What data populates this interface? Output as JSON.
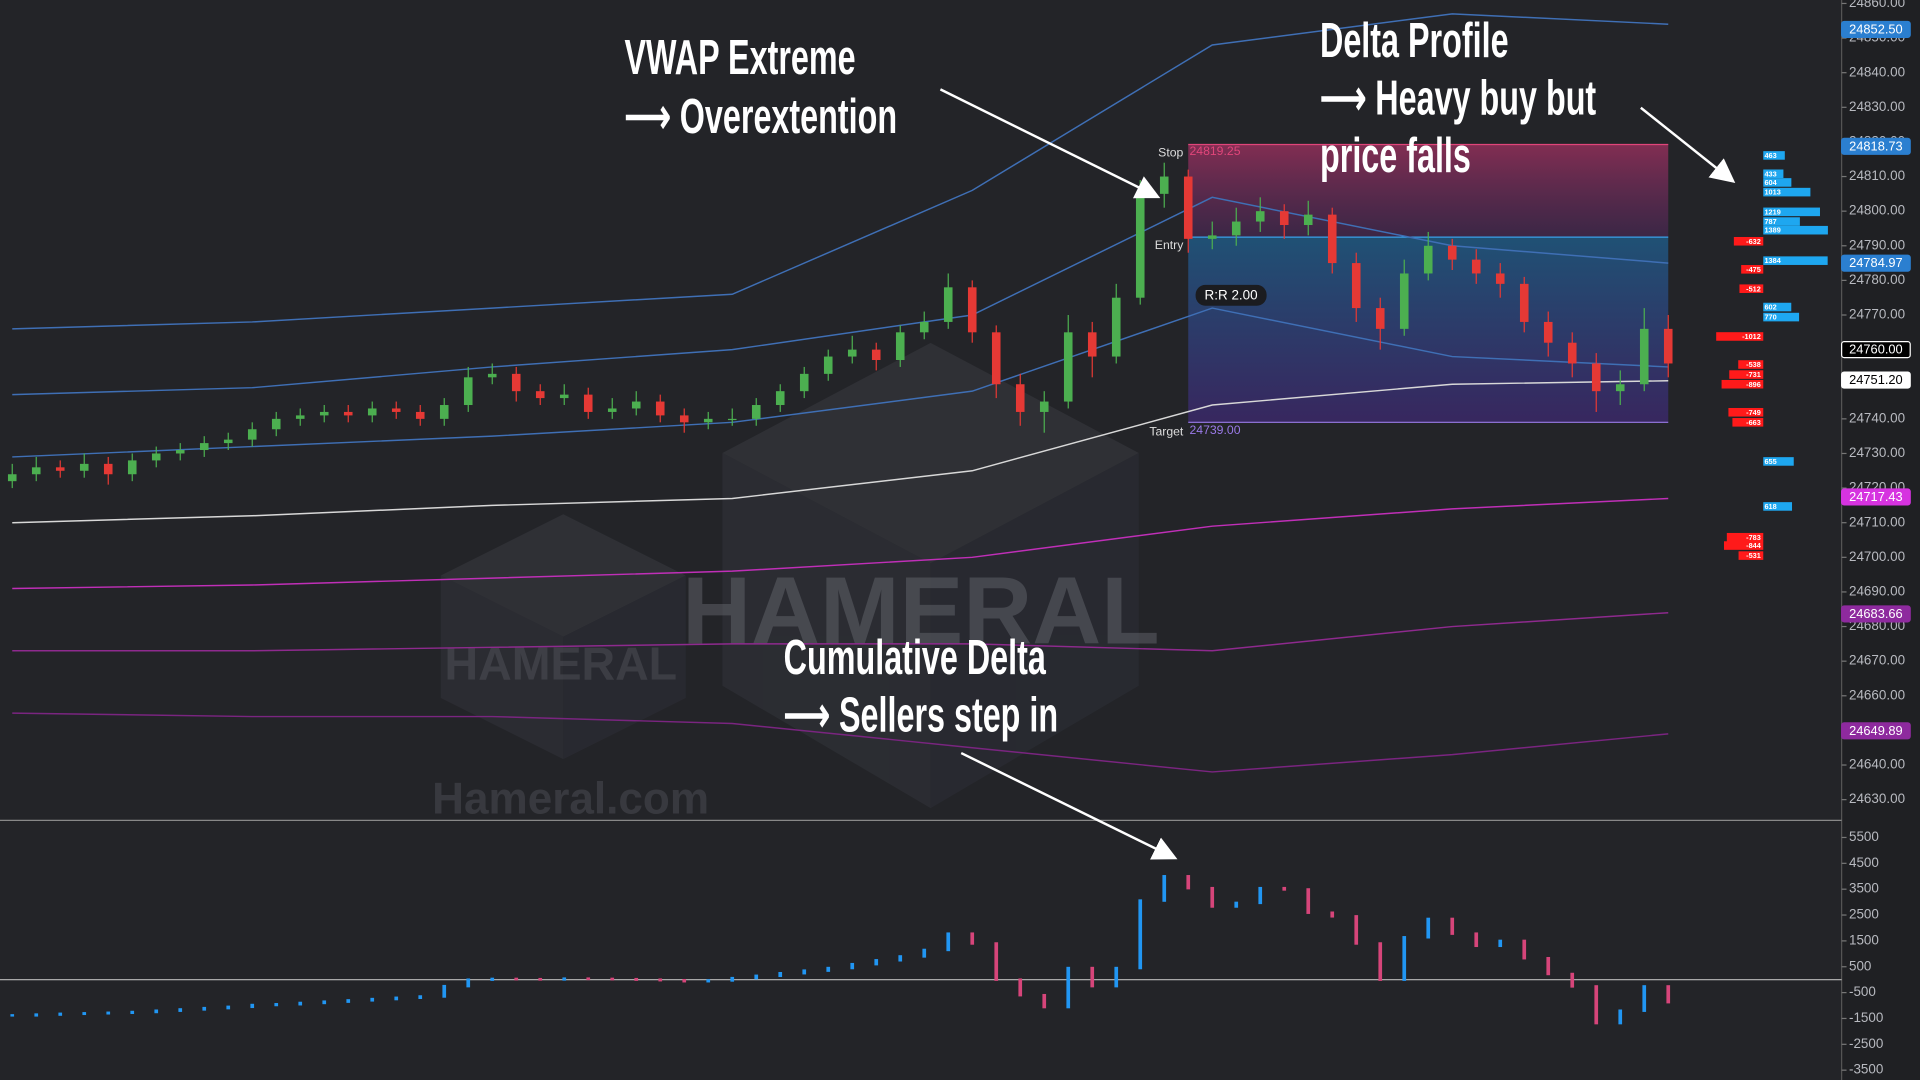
{
  "chart_data": [
    {
      "type": "candlestick",
      "up_color": "#4caf50",
      "down_color": "#e53935",
      "ohlc": [
        [
          24722,
          24727,
          24720,
          24724
        ],
        [
          24724,
          24729,
          24722,
          24726
        ],
        [
          24726,
          24728,
          24723,
          24725
        ],
        [
          24725,
          24730,
          24723,
          24727
        ],
        [
          24727,
          24729,
          24721,
          24724
        ],
        [
          24724,
          24730,
          24722,
          24728
        ],
        [
          24728,
          24732,
          24726,
          24730
        ],
        [
          24730,
          24733,
          24728,
          24731
        ],
        [
          24731,
          24735,
          24729,
          24733
        ],
        [
          24733,
          24736,
          24731,
          24734
        ],
        [
          24734,
          24739,
          24732,
          24737
        ],
        [
          24737,
          24742,
          24735,
          24740
        ],
        [
          24740,
          24743,
          24738,
          24741
        ],
        [
          24741,
          24744,
          24739,
          24742
        ],
        [
          24742,
          24744,
          24739,
          24741
        ],
        [
          24741,
          24745,
          24739,
          24743
        ],
        [
          24743,
          24745,
          24740,
          24742
        ],
        [
          24742,
          24744,
          24738,
          24740
        ],
        [
          24740,
          24746,
          24738,
          24744
        ],
        [
          24744,
          24755,
          24742,
          24752
        ],
        [
          24752,
          24756,
          24750,
          24753
        ],
        [
          24753,
          24755,
          24745,
          24748
        ],
        [
          24748,
          24750,
          24744,
          24746
        ],
        [
          24746,
          24750,
          24744,
          24747
        ],
        [
          24747,
          24749,
          24740,
          24742
        ],
        [
          24742,
          24746,
          24740,
          24743
        ],
        [
          24743,
          24748,
          24741,
          24745
        ],
        [
          24745,
          24747,
          24739,
          24741
        ],
        [
          24741,
          24743,
          24736,
          24739
        ],
        [
          24739,
          24742,
          24737,
          24740
        ],
        [
          24740,
          24743,
          24738,
          24740
        ],
        [
          24740,
          24746,
          24738,
          24744
        ],
        [
          24744,
          24750,
          24742,
          24748
        ],
        [
          24748,
          24755,
          24746,
          24753
        ],
        [
          24753,
          24760,
          24751,
          24758
        ],
        [
          24758,
          24764,
          24756,
          24760
        ],
        [
          24760,
          24762,
          24754,
          24757
        ],
        [
          24757,
          24767,
          24755,
          24765
        ],
        [
          24765,
          24771,
          24763,
          24768
        ],
        [
          24768,
          24782,
          24766,
          24778
        ],
        [
          24778,
          24780,
          24762,
          24765
        ],
        [
          24765,
          24767,
          24746,
          24750
        ],
        [
          24750,
          24753,
          24738,
          24742
        ],
        [
          24742,
          24748,
          24736,
          24745
        ],
        [
          24745,
          24770,
          24743,
          24765
        ],
        [
          24765,
          24768,
          24752,
          24758
        ],
        [
          24758,
          24779,
          24756,
          24775
        ],
        [
          24775,
          24809,
          24773,
          24805
        ],
        [
          24805,
          24814,
          24801,
          24810
        ],
        [
          24810,
          24812,
          24788,
          24792
        ],
        [
          24792,
          24797,
          24789,
          24793
        ],
        [
          24793,
          24801,
          24790,
          24797
        ],
        [
          24797,
          24804,
          24794,
          24800
        ],
        [
          24800,
          24802,
          24792,
          24796
        ],
        [
          24796,
          24803,
          24793,
          24799
        ],
        [
          24799,
          24801,
          24782,
          24785
        ],
        [
          24785,
          24788,
          24768,
          24772
        ],
        [
          24772,
          24775,
          24760,
          24766
        ],
        [
          24766,
          24786,
          24764,
          24782
        ],
        [
          24782,
          24794,
          24780,
          24790
        ],
        [
          24790,
          24792,
          24783,
          24786
        ],
        [
          24786,
          24789,
          24779,
          24782
        ],
        [
          24782,
          24785,
          24775,
          24779
        ],
        [
          24779,
          24781,
          24765,
          24768
        ],
        [
          24768,
          24771,
          24758,
          24762
        ],
        [
          24762,
          24765,
          24752,
          24756
        ],
        [
          24756,
          24759,
          24742,
          24748
        ],
        [
          24748,
          24754,
          24744,
          24750
        ],
        [
          24750,
          24772,
          24748,
          24766
        ],
        [
          24766,
          24770,
          24752,
          24756
        ]
      ],
      "series": [
        {
          "color": "#3f6fb5",
          "x": [
            0,
            10,
            20,
            30,
            40,
            50,
            60,
            69
          ],
          "values": [
            24766,
            24768,
            24772,
            24776,
            24806,
            24848,
            24857,
            24854
          ]
        },
        {
          "color": "#3f6fb5",
          "x": [
            0,
            10,
            20,
            30,
            40,
            50,
            60,
            69
          ],
          "values": [
            24747,
            24749,
            24755,
            24760,
            24770,
            24804,
            24790,
            24785
          ]
        },
        {
          "color": "#3f6fb5",
          "x": [
            0,
            10,
            20,
            30,
            40,
            50,
            60,
            69
          ],
          "values": [
            24729,
            24732,
            24735,
            24739,
            24748,
            24772,
            24758,
            24755
          ]
        },
        {
          "color": "#d8d8d8",
          "x": [
            0,
            10,
            20,
            30,
            40,
            50,
            60,
            69
          ],
          "values": [
            24710,
            24712,
            24715,
            24717,
            24725,
            24744,
            24750,
            24751
          ]
        },
        {
          "color": "#c02fb8",
          "x": [
            0,
            10,
            20,
            30,
            40,
            50,
            60,
            69
          ],
          "values": [
            24691,
            24692,
            24694,
            24696,
            24700,
            24709,
            24714,
            24717
          ]
        },
        {
          "color": "#8e2a8e",
          "x": [
            0,
            10,
            20,
            30,
            40,
            50,
            60,
            69
          ],
          "values": [
            24673,
            24673,
            24674,
            24675,
            24675,
            24673,
            24680,
            24684
          ]
        },
        {
          "color": "#7a2580",
          "x": [
            0,
            10,
            20,
            30,
            40,
            50,
            60,
            69
          ],
          "values": [
            24655,
            24654,
            24654,
            24652,
            24645,
            24638,
            24643,
            24649
          ]
        }
      ],
      "ylim": [
        24624,
        24861
      ],
      "yticks": [
        {
          "value": 24630,
          "label": "24630.00"
        },
        {
          "value": 24640,
          "label": "24640.00"
        },
        {
          "value": 24650,
          "label": "24650.00"
        },
        {
          "value": 24660,
          "label": "24660.00"
        },
        {
          "value": 24670,
          "label": "24670.00"
        },
        {
          "value": 24680,
          "label": "24680.00"
        },
        {
          "value": 24690,
          "label": "24690.00"
        },
        {
          "value": 24700,
          "label": "24700.00"
        },
        {
          "value": 24710,
          "label": "24710.00"
        },
        {
          "value": 24720,
          "label": "24720.00"
        },
        {
          "value": 24730,
          "label": "24730.00"
        },
        {
          "value": 24740,
          "label": "24740.00"
        },
        {
          "value": 24750,
          "label": "24750.00"
        },
        {
          "value": 24760,
          "label": "24760.00"
        },
        {
          "value": 24770,
          "label": "24770.00"
        },
        {
          "value": 24780,
          "label": "24780.00"
        },
        {
          "value": 24790,
          "label": "24790.00"
        },
        {
          "value": 24800,
          "label": "24800.00"
        },
        {
          "value": 24810,
          "label": "24810.00"
        },
        {
          "value": 24820,
          "label": "24820.00"
        },
        {
          "value": 24830,
          "label": "24830.00"
        },
        {
          "value": 24840,
          "label": "24840.00"
        },
        {
          "value": 24850,
          "label": "24850.00"
        },
        {
          "value": 24860,
          "label": "24860.00"
        }
      ],
      "price_tags": [
        {
          "value": 24852.5,
          "label": "24852.50",
          "color": "#2b7fd0",
          "text_color": "#ffffff"
        },
        {
          "value": 24818.73,
          "label": "24818.73",
          "color": "#2b7fd0",
          "text_color": "#ffffff"
        },
        {
          "value": 24784.97,
          "label": "24784.97",
          "color": "#2b7fd0",
          "text_color": "#ffffff"
        },
        {
          "value": 24760,
          "label": "24760.00",
          "color": "#000000",
          "text_color": "#ffffff"
        },
        {
          "value": 24751.2,
          "label": "24751.20",
          "color": "#ffffff",
          "text_color": "#000000"
        },
        {
          "value": 24717.43,
          "label": "24717.43",
          "color": "#d633e0",
          "text_color": "#ffffff"
        },
        {
          "value": 24683.66,
          "label": "24683.66",
          "color": "#8e2a9e",
          "text_color": "#ffffff"
        },
        {
          "value": 24649.89,
          "label": "24649.89",
          "color": "#8e2a9e",
          "text_color": "#ffffff"
        }
      ],
      "trade": {
        "start_index": 49,
        "end_index": 69,
        "stop": {
          "label": "Stop",
          "value": 24819.25,
          "value_label": "24819.25"
        },
        "entry": {
          "label": "Entry",
          "value": 24792.5
        },
        "target": {
          "label": "Target",
          "value": 24739,
          "value_label": "24739.00"
        },
        "ratio_label": "R:R 2.00"
      }
    },
    {
      "type": "profile",
      "pos_color": "#1ea7f0",
      "neg_color": "#ff1a1a",
      "y": [
        24816.1,
        24810.8,
        24808.3,
        24805.5,
        24799.8,
        24797,
        24794.5,
        24791.3,
        24785.7,
        24783.2,
        24777.6,
        24772.3,
        24769.4,
        24763.8,
        24755.7,
        24752.8,
        24750,
        24741.9,
        24739,
        24727.7,
        24714.7,
        24705.8,
        24703.4,
        24700.5
      ],
      "values": [
        463,
        433,
        604,
        1013,
        1219,
        787,
        1389,
        -632,
        1384,
        -475,
        -512,
        602,
        770,
        -1012,
        -538,
        -731,
        -896,
        -749,
        -663,
        655,
        618,
        -783,
        -844,
        -531
      ]
    },
    {
      "type": "delta",
      "up_color": "#2196f3",
      "down_color": "#d6457a",
      "values": [
        -1380,
        -1350,
        -1320,
        -1300,
        -1280,
        -1250,
        -1200,
        -1150,
        -1100,
        -1050,
        -980,
        -950,
        -900,
        -850,
        -800,
        -750,
        -700,
        -650,
        -250,
        0,
        30,
        20,
        10,
        40,
        30,
        20,
        0,
        -20,
        -60,
        -30,
        60,
        150,
        250,
        350,
        450,
        600,
        750,
        900,
        1150,
        1780,
        1400,
        0,
        -600,
        -1060,
        450,
        -250,
        450,
        3060,
        4000,
        3540,
        2830,
        2970,
        3540,
        3490,
        2590,
        2450,
        1400,
        0,
        1640,
        2350,
        1780,
        1310,
        1500,
        830,
        220,
        -260,
        -1680,
        -1200,
        -260,
        -870
      ],
      "ylim": [
        -3880,
        6160
      ],
      "yticks": [
        5500,
        4500,
        3500,
        2500,
        1500,
        500,
        -500,
        -1500,
        -2500,
        -3500
      ]
    }
  ],
  "annotations": [
    [
      "VWAP Extreme",
      "⟶ Overextention"
    ],
    [
      "Delta Profile",
      "⟶ Heavy buy but",
      "price falls"
    ],
    [
      "Cumulative Delta",
      "⟶ Sellers step in"
    ]
  ],
  "watermark": {
    "brand": "HAMERAL",
    "site": "Hameral.com"
  }
}
